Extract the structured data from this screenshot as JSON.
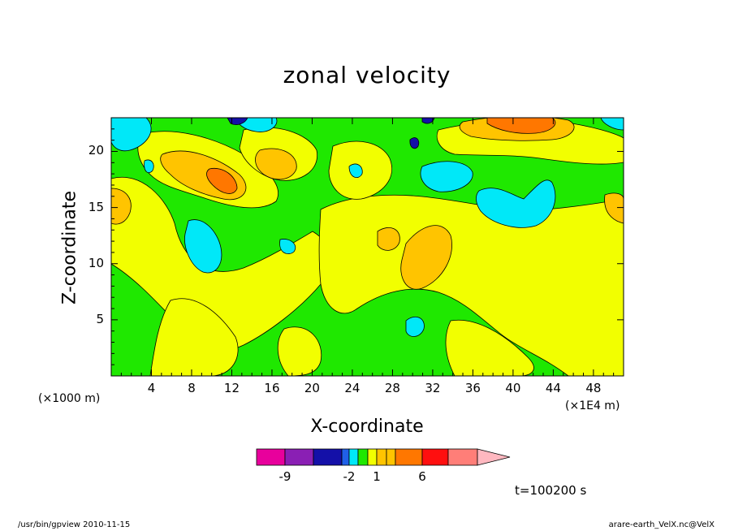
{
  "chart_data": {
    "type": "contour",
    "title": "zonal velocity",
    "xlabel": "X-coordinate",
    "ylabel": "Z-coordinate",
    "x_unit": "(×1000 m)",
    "x_scale_note": "(×1E4 m)",
    "xlim": [
      0,
      51
    ],
    "ylim": [
      0,
      23
    ],
    "x_ticks": [
      4,
      8,
      12,
      16,
      20,
      24,
      28,
      32,
      36,
      40,
      44,
      48
    ],
    "y_ticks": [
      5,
      10,
      15,
      20
    ],
    "colorbar_ticks": [
      {
        "label": "-9",
        "level": -9
      },
      {
        "label": "-2",
        "level": -2
      },
      {
        "label": "1",
        "level": 1
      },
      {
        "label": "6",
        "level": 6
      }
    ],
    "time_label": "t=100200 s",
    "colors": {
      "magenta": "#e8009c",
      "purple": "#8a1fb4",
      "navy": "#1410a8",
      "blue": "#2060e8",
      "cyan": "#00e8f8",
      "green": "#1fe800",
      "yellow": "#f2ff00",
      "gold": "#ffc400",
      "orange": "#ff7700",
      "red": "#ff0f0f",
      "salmon": "#ff7e78",
      "pink": "#ffb8c0"
    }
  },
  "footer": {
    "left": "/usr/bin/gpview   2010-11-15",
    "right": "arare-earth_VelX.nc@VelX"
  }
}
